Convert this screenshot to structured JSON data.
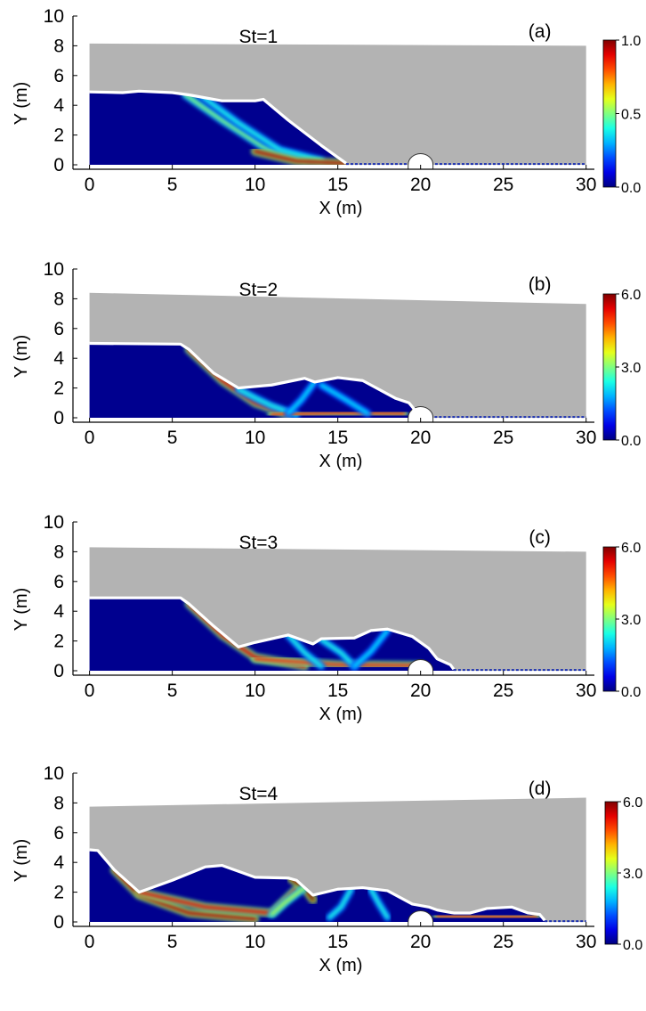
{
  "chart_data": [
    {
      "type": "heatmap",
      "panel_label": "(a)",
      "title": "St=1",
      "xlabel": "X (m)",
      "ylabel": "Y (m)",
      "xlim": [
        -1,
        30.5
      ],
      "ylim": [
        -0.3,
        10
      ],
      "xticks": [
        0,
        5,
        10,
        15,
        20,
        25,
        30
      ],
      "yticks": [
        0,
        2,
        4,
        6,
        8,
        10
      ],
      "water_surface_y": [
        8.15,
        8.0
      ],
      "obstacle_center_x": 20.0,
      "obstacle_radius": 0.75,
      "colorbar": {
        "min": 0.0,
        "max": 1.0,
        "tick_labels": [
          "1.0",
          "0.5",
          "0.0"
        ]
      },
      "profile": [
        [
          0,
          4.9
        ],
        [
          2,
          4.85
        ],
        [
          3,
          4.95
        ],
        [
          5,
          4.85
        ],
        [
          6,
          4.7
        ],
        [
          8,
          4.3
        ],
        [
          10,
          4.3
        ],
        [
          10.5,
          4.4
        ],
        [
          12,
          3.0
        ],
        [
          14,
          1.3
        ],
        [
          15,
          0.5
        ],
        [
          15.5,
          0.1
        ]
      ],
      "shear_bands": [
        {
          "points": [
            [
              5.8,
              4.7
            ],
            [
              8,
              3
            ],
            [
              10.5,
              1.2
            ],
            [
              13,
              0.35
            ]
          ],
          "intensity": 0.5
        },
        {
          "points": [
            [
              6.8,
              4.6
            ],
            [
              9,
              2.8
            ],
            [
              11.5,
              1
            ],
            [
              14,
              0.3
            ]
          ],
          "intensity": 0.4
        },
        {
          "points": [
            [
              10,
              0.9
            ],
            [
              12.5,
              0.25
            ],
            [
              15.5,
              0.1
            ]
          ],
          "intensity": 0.95
        }
      ]
    },
    {
      "type": "heatmap",
      "panel_label": "(b)",
      "title": "St=2",
      "xlabel": "X (m)",
      "ylabel": "Y (m)",
      "xlim": [
        -1,
        30.5
      ],
      "ylim": [
        -0.3,
        10
      ],
      "xticks": [
        0,
        5,
        10,
        15,
        20,
        25,
        30
      ],
      "yticks": [
        0,
        2,
        4,
        6,
        8,
        10
      ],
      "water_surface_y": [
        8.4,
        7.65
      ],
      "obstacle_center_x": 20.0,
      "obstacle_radius": 0.75,
      "colorbar": {
        "min": 0.0,
        "max": 6.0,
        "tick_labels": [
          "6.0",
          "3.0",
          "0.0"
        ]
      },
      "profile": [
        [
          0,
          5
        ],
        [
          5.5,
          4.95
        ],
        [
          6,
          4.6
        ],
        [
          7.5,
          3
        ],
        [
          9,
          2.0
        ],
        [
          11,
          2.2
        ],
        [
          13,
          2.65
        ],
        [
          13.6,
          2.4
        ],
        [
          15,
          2.7
        ],
        [
          16.5,
          2.5
        ],
        [
          18.5,
          1.3
        ],
        [
          19.3,
          1.0
        ],
        [
          19.6,
          0.6
        ],
        [
          19.5,
          0.1
        ]
      ],
      "shear_bands": [
        {
          "points": [
            [
              6,
              4.6
            ],
            [
              8,
              2.5
            ],
            [
              10,
              1
            ],
            [
              12,
              0.2
            ]
          ],
          "intensity": 0.9
        },
        {
          "points": [
            [
              9,
              1.9
            ],
            [
              11,
              0.8
            ],
            [
              12.5,
              0.2
            ]
          ],
          "intensity": 0.4
        },
        {
          "points": [
            [
              11,
              0.2
            ],
            [
              15,
              0.35
            ],
            [
              19,
              0.3
            ]
          ],
          "intensity": 0.85
        },
        {
          "points": [
            [
              13.6,
              2.4
            ],
            [
              12.8,
              1.2
            ],
            [
              12,
              0.3
            ]
          ],
          "intensity": 0.35
        },
        {
          "points": [
            [
              14,
              2.2
            ],
            [
              15.5,
              1.2
            ],
            [
              16.8,
              0.3
            ]
          ],
          "intensity": 0.35
        }
      ]
    },
    {
      "type": "heatmap",
      "panel_label": "(c)",
      "title": "St=3",
      "xlabel": "X (m)",
      "ylabel": "Y (m)",
      "xlim": [
        -1,
        30.5
      ],
      "ylim": [
        -0.3,
        10
      ],
      "xticks": [
        0,
        5,
        10,
        15,
        20,
        25,
        30
      ],
      "yticks": [
        0,
        2,
        4,
        6,
        8,
        10
      ],
      "water_surface_y": [
        8.3,
        8.0
      ],
      "obstacle_center_x": 20.0,
      "obstacle_radius": 0.75,
      "colorbar": {
        "min": 0.0,
        "max": 6.0,
        "tick_labels": [
          "6.0",
          "3.0",
          "0.0"
        ]
      },
      "profile": [
        [
          0,
          4.9
        ],
        [
          5.5,
          4.9
        ],
        [
          6,
          4.5
        ],
        [
          7.5,
          3
        ],
        [
          9,
          1.6
        ],
        [
          10,
          1.9
        ],
        [
          12,
          2.4
        ],
        [
          13.5,
          1.8
        ],
        [
          14,
          2.15
        ],
        [
          16,
          2.2
        ],
        [
          17,
          2.7
        ],
        [
          18,
          2.8
        ],
        [
          19.5,
          2.3
        ],
        [
          20.5,
          1.5
        ],
        [
          21,
          0.8
        ],
        [
          21.8,
          0.4
        ],
        [
          22,
          0.1
        ]
      ],
      "shear_bands": [
        {
          "points": [
            [
              6,
              4.5
            ],
            [
              8,
              2.4
            ],
            [
              10,
              0.9
            ],
            [
              13,
              0.3
            ]
          ],
          "intensity": 0.9
        },
        {
          "points": [
            [
              10,
              0.8
            ],
            [
              15,
              0.4
            ],
            [
              20,
              0.35
            ]
          ],
          "intensity": 0.85
        },
        {
          "points": [
            [
              12,
              2.4
            ],
            [
              13,
              1.2
            ],
            [
              14,
              0.3
            ]
          ],
          "intensity": 0.4
        },
        {
          "points": [
            [
              14,
              2.1
            ],
            [
              15.2,
              1.2
            ],
            [
              16,
              0.3
            ]
          ],
          "intensity": 0.4
        },
        {
          "points": [
            [
              18,
              2.7
            ],
            [
              17,
              1.3
            ],
            [
              16,
              0.3
            ]
          ],
          "intensity": 0.35
        }
      ]
    },
    {
      "type": "heatmap",
      "panel_label": "(d)",
      "title": "St=4",
      "xlabel": "X (m)",
      "ylabel": "Y (m)",
      "xlim": [
        -1,
        30.5
      ],
      "ylim": [
        -0.3,
        10
      ],
      "xticks": [
        0,
        5,
        10,
        15,
        20,
        25,
        30
      ],
      "yticks": [
        0,
        2,
        4,
        6,
        8,
        10
      ],
      "water_surface_y": [
        7.75,
        8.35
      ],
      "obstacle_center_x": 20.0,
      "obstacle_radius": 0.75,
      "colorbar": {
        "min": 0.0,
        "max": 6.0,
        "tick_labels": [
          "6.0",
          "3.0",
          "0.0"
        ]
      },
      "profile": [
        [
          0,
          4.85
        ],
        [
          0.5,
          4.8
        ],
        [
          1.5,
          3.5
        ],
        [
          3,
          2.0
        ],
        [
          5,
          2.8
        ],
        [
          7,
          3.7
        ],
        [
          8,
          3.8
        ],
        [
          10,
          3.0
        ],
        [
          12,
          2.95
        ],
        [
          12.5,
          2.8
        ],
        [
          13.5,
          1.8
        ],
        [
          15,
          2.2
        ],
        [
          16.5,
          2.3
        ],
        [
          18,
          2.1
        ],
        [
          19.5,
          1.2
        ],
        [
          20.5,
          1.0
        ],
        [
          21,
          0.8
        ],
        [
          22,
          0.6
        ],
        [
          23,
          0.6
        ],
        [
          24,
          0.9
        ],
        [
          25.5,
          1.0
        ],
        [
          26.5,
          0.6
        ],
        [
          27.2,
          0.5
        ],
        [
          27.5,
          0.1
        ]
      ],
      "shear_bands": [
        {
          "points": [
            [
              1.5,
              3.5
            ],
            [
              3,
              1.8
            ],
            [
              6,
              0.6
            ],
            [
              10,
              0.2
            ]
          ],
          "intensity": 0.95
        },
        {
          "points": [
            [
              3,
              2.0
            ],
            [
              7,
              1.0
            ],
            [
              11,
              0.6
            ],
            [
              12.5,
              2.2
            ]
          ],
          "intensity": 0.9
        },
        {
          "points": [
            [
              11,
              0.4
            ],
            [
              16,
              0.4
            ],
            [
              20,
              0.4
            ]
          ],
          "intensity": 0.85
        },
        {
          "points": [
            [
              12.2,
              2.9
            ],
            [
              13,
              2.3
            ],
            [
              13.5,
              1.5
            ]
          ],
          "intensity": 1.0
        },
        {
          "points": [
            [
              13,
              2.3
            ],
            [
              11.8,
              1.3
            ],
            [
              11,
              0.5
            ]
          ],
          "intensity": 0.55
        },
        {
          "points": [
            [
              15.8,
              2.2
            ],
            [
              15.2,
              1.0
            ],
            [
              14.5,
              0.3
            ]
          ],
          "intensity": 0.4
        },
        {
          "points": [
            [
              17,
              2.2
            ],
            [
              17.5,
              1.2
            ],
            [
              18,
              0.3
            ]
          ],
          "intensity": 0.4
        },
        {
          "points": [
            [
              21,
              0.4
            ],
            [
              24,
              0.35
            ],
            [
              27,
              0.3
            ]
          ],
          "intensity": 0.85
        }
      ]
    }
  ]
}
